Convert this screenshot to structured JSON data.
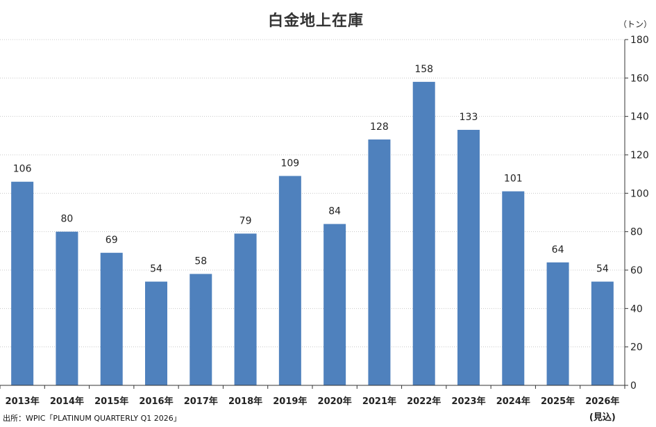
{
  "chart_data": {
    "type": "bar",
    "title": "白金地上在庫",
    "unit_label": "（トン）",
    "categories": [
      "2013年",
      "2014年",
      "2015年",
      "2016年",
      "2017年",
      "2018年",
      "2019年",
      "2020年",
      "2021年",
      "2022年",
      "2023年",
      "2024年",
      "2025年",
      "2026年"
    ],
    "category_sublabels": [
      "",
      "",
      "",
      "",
      "",
      "",
      "",
      "",
      "",
      "",
      "",
      "",
      "",
      "(見込)"
    ],
    "values": [
      106,
      80,
      69,
      54,
      58,
      79,
      109,
      84,
      128,
      158,
      133,
      101,
      64,
      54
    ],
    "ylim": [
      0,
      180
    ],
    "yticks": [
      0,
      20,
      40,
      60,
      80,
      100,
      120,
      140,
      160,
      180
    ],
    "y_axis_side": "right",
    "grid": true,
    "bar_color": "#4f81bd",
    "source": "出所：WPIC「PLATINUM QUARTERLY Q1 2026」"
  }
}
